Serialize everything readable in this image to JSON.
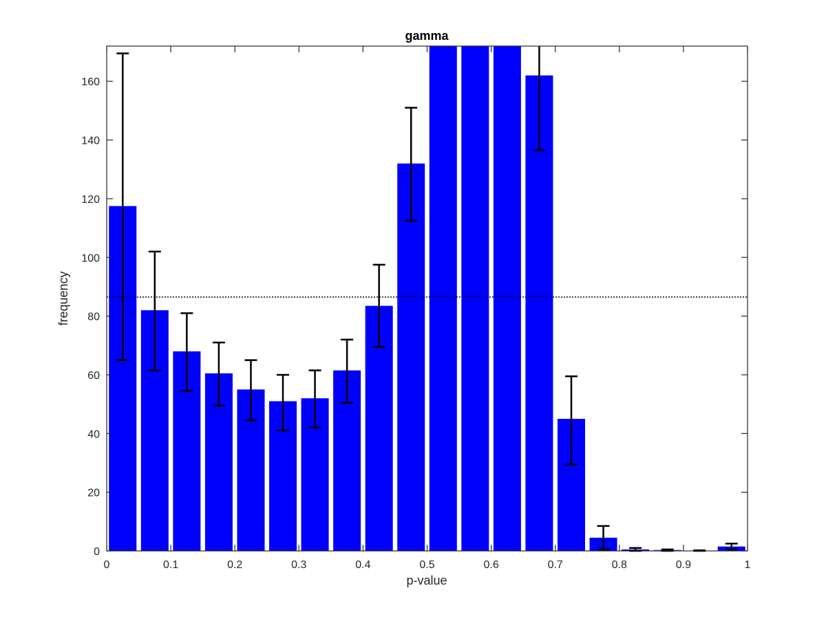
{
  "chart_data": {
    "type": "bar",
    "title": "gamma",
    "xlabel": "p-value",
    "ylabel": "frequency",
    "xlim": [
      0,
      1
    ],
    "ylim": [
      0,
      172
    ],
    "xticks": [
      "0",
      "0.1",
      "0.2",
      "0.3",
      "0.4",
      "0.5",
      "0.6",
      "0.7",
      "0.8",
      "0.9",
      "1"
    ],
    "yticks": [
      "0",
      "20",
      "40",
      "60",
      "80",
      "100",
      "120",
      "140",
      "160"
    ],
    "grid": false,
    "bar_color": "#0000ff",
    "errorbar_color": "#000000",
    "reference_line": {
      "y": 86.5,
      "style": "dotted",
      "color": "#000000"
    },
    "bins": [
      {
        "x": 0.025,
        "value": 117.5,
        "err_low": 65.0,
        "err_high": 169.5
      },
      {
        "x": 0.075,
        "value": 82.0,
        "err_low": 61.5,
        "err_high": 102.0
      },
      {
        "x": 0.125,
        "value": 68.0,
        "err_low": 54.5,
        "err_high": 81.0
      },
      {
        "x": 0.175,
        "value": 60.5,
        "err_low": 49.5,
        "err_high": 71.0
      },
      {
        "x": 0.225,
        "value": 55.0,
        "err_low": 44.5,
        "err_high": 65.0
      },
      {
        "x": 0.275,
        "value": 51.0,
        "err_low": 41.0,
        "err_high": 60.0
      },
      {
        "x": 0.325,
        "value": 52.0,
        "err_low": 42.0,
        "err_high": 61.5
      },
      {
        "x": 0.375,
        "value": 61.5,
        "err_low": 50.5,
        "err_high": 72.0
      },
      {
        "x": 0.425,
        "value": 83.5,
        "err_low": 69.5,
        "err_high": 97.5
      },
      {
        "x": 0.475,
        "value": 132.0,
        "err_low": 112.5,
        "err_high": 151.0
      },
      {
        "x": 0.525,
        "value": 172.0,
        "err_low": null,
        "err_high": null
      },
      {
        "x": 0.575,
        "value": 172.0,
        "err_low": null,
        "err_high": null
      },
      {
        "x": 0.625,
        "value": 172.0,
        "err_low": null,
        "err_high": null
      },
      {
        "x": 0.675,
        "value": 162.0,
        "err_low": 136.5,
        "err_high": 172.0
      },
      {
        "x": 0.725,
        "value": 45.0,
        "err_low": 29.5,
        "err_high": 59.5
      },
      {
        "x": 0.775,
        "value": 4.5,
        "err_low": 0.5,
        "err_high": 8.5
      },
      {
        "x": 0.825,
        "value": 0.5,
        "err_low": 0.0,
        "err_high": 1.0
      },
      {
        "x": 0.875,
        "value": 0.3,
        "err_low": 0.0,
        "err_high": 0.5
      },
      {
        "x": 0.925,
        "value": 0.1,
        "err_low": 0.0,
        "err_high": 0.2
      },
      {
        "x": 0.975,
        "value": 1.5,
        "err_low": 0.5,
        "err_high": 2.5
      }
    ]
  }
}
